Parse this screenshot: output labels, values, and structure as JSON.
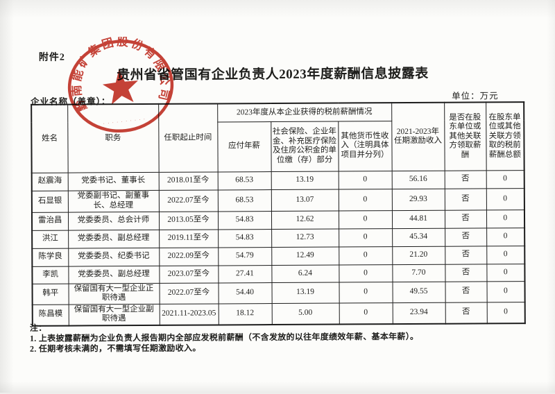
{
  "page": {
    "attachment_label": "附件2",
    "title": "贵州省省管国有企业负责人2023年度薪酬信息披露表",
    "company_label": "企业名称（盖章）：",
    "unit_label": "单位：万元",
    "seal": {
      "arc_text": "黔南能矿集团股份有限公司",
      "serial_marks": "· · · · · · · · · ·",
      "color": "#bf3226"
    },
    "notes": {
      "label": "注：",
      "items": [
        "1. 上表披露薪酬为企业负责人报告期内全部应发税前薪酬（不含发放的以往年度绩效年薪、基本年薪）。",
        "2. 任期考核未满的，不需填写任期激励收入。"
      ]
    },
    "colors": {
      "ink": "#1d1d1b",
      "paper": "#fcfcfa",
      "seal_red": "#bf3226"
    }
  },
  "table": {
    "header": {
      "name": "姓名",
      "position": "职务",
      "term": "任职起止时间",
      "salary_group": "2023年度从本企业获得的税前薪酬情况",
      "payable_salary": "应付年薪",
      "insurance": "社会保险、企业年金、补充医疗保险及住房公积金的单位缴（存）部分",
      "other_income": "其他货币性收入（注明具体项目并分列）",
      "term_incentive": "2021-2023年任期激励收入",
      "related_party_paid": "是否在股东单位或其他关联方领取薪酬",
      "related_party_total": "在股东单位或其他关联方领取的税前薪酬总额"
    },
    "rows": [
      [
        "赵震海",
        "党委书记、董事长",
        "2018.01至今",
        "68.53",
        "13.19",
        "0",
        "56.16",
        "否",
        "0"
      ],
      [
        "石显银",
        "党委副书记、副董事长、总经理",
        "2022.07至今",
        "68.53",
        "13.07",
        "0",
        "29.93",
        "否",
        "0"
      ],
      [
        "雷治昌",
        "党委委员、总会计师",
        "2013.05至今",
        "54.83",
        "12.62",
        "0",
        "44.81",
        "否",
        "0"
      ],
      [
        "洪江",
        "党委委员、副总经理",
        "2019.11至今",
        "54.83",
        "12.73",
        "0",
        "45.34",
        "否",
        "0"
      ],
      [
        "陈学良",
        "党委委员、纪委书记",
        "2022.09至今",
        "54.79",
        "12.49",
        "0",
        "21.20",
        "否",
        "0"
      ],
      [
        "李凯",
        "党委委员、副总经理",
        "2023.07至今",
        "27.41",
        "6.24",
        "0",
        "7.70",
        "否",
        "0"
      ],
      [
        "韩平",
        "保留国有大一型企业正职待遇",
        "2022.07至今",
        "54.40",
        "13.19",
        "0",
        "49.55",
        "否",
        "0"
      ],
      [
        "陈昌模",
        "保留国有大一型企业副职待遇",
        "2021.11-2023.05",
        "18.12",
        "5.00",
        "0",
        "23.94",
        "否",
        "0"
      ]
    ]
  }
}
